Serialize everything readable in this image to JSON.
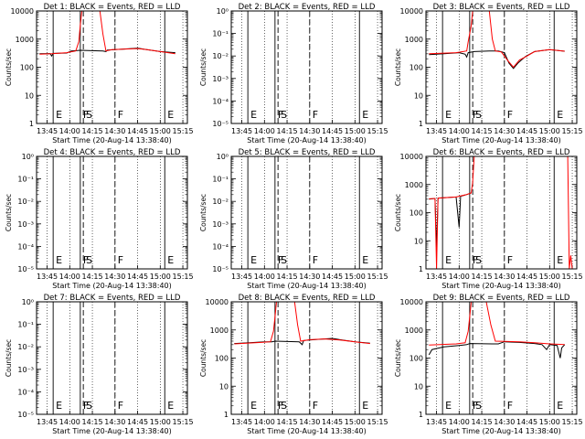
{
  "figure": {
    "xlabel": "Start Time (20-Aug-14 13:38:40)",
    "ylabel": "Counts/sec",
    "x_ticks": [
      "13:45",
      "14:00",
      "14:15",
      "14:30",
      "14:45",
      "15:00",
      "15:15"
    ],
    "log_tick_labels_numeric": [
      "1",
      "10",
      "100",
      "1000",
      "10000"
    ],
    "log_tick_labels_exp": [
      "10⁰",
      "10⁻¹",
      "10⁻²",
      "10⁻³",
      "10⁻⁴",
      "10⁻⁵"
    ],
    "colors": {
      "events": "#000000",
      "lld": "#ff0000"
    }
  },
  "chart_data": [
    {
      "title": "Det 1: BLACK = Events, RED = LLD",
      "type": "line",
      "yscale": "log",
      "xlim": [
        "13:38",
        "15:18"
      ],
      "ylim": [
        1,
        10000
      ],
      "tick_style": "numeric",
      "markers": [
        {
          "x": "13:49",
          "label": "E"
        },
        {
          "x": "14:07",
          "label": "F"
        },
        {
          "x": "14:09",
          "label": "S"
        },
        {
          "x": "14:30",
          "label": "F"
        },
        {
          "x": "15:03",
          "label": "E"
        }
      ],
      "series": [
        {
          "name": "Events",
          "color": "#000000",
          "points": [
            [
              "13:40",
              300
            ],
            [
              "13:47",
              305
            ],
            [
              "13:48",
              250
            ],
            [
              "13:49",
              310
            ],
            [
              "13:58",
              320
            ],
            [
              "14:01",
              380
            ],
            [
              "14:05",
              390
            ],
            [
              "14:07",
              400
            ],
            [
              "14:22",
              380
            ],
            [
              "14:24",
              360
            ],
            [
              "14:25",
              410
            ],
            [
              "14:35",
              440
            ],
            [
              "14:45",
              480
            ],
            [
              "14:50",
              430
            ],
            [
              "15:00",
              360
            ],
            [
              "15:10",
              330
            ]
          ]
        },
        {
          "name": "LLD",
          "color": "#ff0000",
          "points": [
            [
              "13:40",
              290
            ],
            [
              "13:48",
              300
            ],
            [
              "13:58",
              330
            ],
            [
              "14:04",
              380
            ],
            [
              "14:06",
              800
            ],
            [
              "14:07",
              3000
            ],
            [
              "14:08",
              10000
            ],
            [
              "14:20",
              10000
            ],
            [
              "14:22",
              1500
            ],
            [
              "14:24",
              380
            ],
            [
              "14:28",
              420
            ],
            [
              "14:35",
              440
            ],
            [
              "14:45",
              460
            ],
            [
              "14:50",
              430
            ],
            [
              "15:00",
              360
            ],
            [
              "15:10",
              300
            ]
          ]
        }
      ]
    },
    {
      "title": "Det 2: BLACK = Events, RED = LLD",
      "type": "line",
      "yscale": "log",
      "xlim": [
        "13:38",
        "15:18"
      ],
      "ylim": [
        1e-05,
        1
      ],
      "tick_style": "exp",
      "markers": [
        {
          "x": "13:49",
          "label": "E"
        },
        {
          "x": "14:07",
          "label": "F"
        },
        {
          "x": "14:09",
          "label": "S"
        },
        {
          "x": "14:30",
          "label": "F"
        },
        {
          "x": "15:03",
          "label": "E"
        }
      ],
      "series": []
    },
    {
      "title": "Det 3: BLACK = Events, RED = LLD",
      "type": "line",
      "yscale": "log",
      "xlim": [
        "13:38",
        "15:18"
      ],
      "ylim": [
        1,
        10000
      ],
      "tick_style": "numeric",
      "markers": [
        {
          "x": "13:49",
          "label": "E"
        },
        {
          "x": "14:07",
          "label": "F"
        },
        {
          "x": "14:09",
          "label": "S"
        },
        {
          "x": "14:30",
          "label": "F"
        },
        {
          "x": "15:03",
          "label": "E"
        }
      ],
      "series": [
        {
          "name": "Events",
          "color": "#000000",
          "points": [
            [
              "13:40",
              280
            ],
            [
              "13:50",
              300
            ],
            [
              "14:00",
              330
            ],
            [
              "14:04",
              290
            ],
            [
              "14:05",
              230
            ],
            [
              "14:06",
              330
            ],
            [
              "14:10",
              360
            ],
            [
              "14:20",
              380
            ],
            [
              "14:26",
              380
            ],
            [
              "14:30",
              330
            ],
            [
              "14:33",
              140
            ],
            [
              "14:36",
              90
            ],
            [
              "14:39",
              140
            ],
            [
              "14:44",
              240
            ],
            [
              "14:50",
              360
            ],
            [
              "15:00",
              420
            ],
            [
              "15:10",
              370
            ]
          ]
        },
        {
          "name": "LLD",
          "color": "#ff0000",
          "points": [
            [
              "13:40",
              300
            ],
            [
              "13:58",
              330
            ],
            [
              "14:05",
              380
            ],
            [
              "14:06",
              800
            ],
            [
              "14:08",
              3000
            ],
            [
              "14:09",
              10000
            ],
            [
              "14:20",
              10000
            ],
            [
              "14:22",
              1000
            ],
            [
              "14:24",
              380
            ],
            [
              "14:28",
              350
            ],
            [
              "14:32",
              180
            ],
            [
              "14:36",
              100
            ],
            [
              "14:40",
              180
            ],
            [
              "14:45",
              250
            ],
            [
              "14:50",
              360
            ],
            [
              "15:00",
              420
            ],
            [
              "15:10",
              370
            ]
          ]
        }
      ]
    },
    {
      "title": "Det 4: BLACK = Events, RED = LLD",
      "type": "line",
      "yscale": "log",
      "xlim": [
        "13:38",
        "15:18"
      ],
      "ylim": [
        1e-05,
        1
      ],
      "tick_style": "exp",
      "markers": [
        {
          "x": "13:49",
          "label": "E"
        },
        {
          "x": "14:07",
          "label": "F"
        },
        {
          "x": "14:09",
          "label": "S"
        },
        {
          "x": "14:30",
          "label": "F"
        },
        {
          "x": "15:03",
          "label": "E"
        }
      ],
      "series": []
    },
    {
      "title": "Det 5: BLACK = Events, RED = LLD",
      "type": "line",
      "yscale": "log",
      "xlim": [
        "13:38",
        "15:18"
      ],
      "ylim": [
        1e-05,
        1
      ],
      "tick_style": "exp",
      "markers": [
        {
          "x": "13:49",
          "label": "E"
        },
        {
          "x": "14:07",
          "label": "F"
        },
        {
          "x": "14:09",
          "label": "S"
        },
        {
          "x": "14:30",
          "label": "F"
        },
        {
          "x": "15:03",
          "label": "E"
        }
      ],
      "series": []
    },
    {
      "title": "Det 6: BLACK = Events, RED = LLD",
      "type": "line",
      "yscale": "log",
      "xlim": [
        "13:38",
        "15:18"
      ],
      "ylim": [
        1,
        10000
      ],
      "tick_style": "numeric",
      "markers": [
        {
          "x": "13:49",
          "label": "E"
        },
        {
          "x": "14:07",
          "label": "F"
        },
        {
          "x": "14:09",
          "label": "S"
        },
        {
          "x": "14:30",
          "label": "F"
        },
        {
          "x": "15:03",
          "label": "E"
        }
      ],
      "series": [
        {
          "name": "Events",
          "color": "#000000",
          "points": [
            [
              "13:40",
              300
            ],
            [
              "13:44",
              320
            ],
            [
              "13:45",
              5
            ],
            [
              "13:46",
              330
            ],
            [
              "13:58",
              360
            ],
            [
              "14:00",
              30
            ],
            [
              "14:01",
              380
            ],
            [
              "14:05",
              440
            ],
            [
              "14:08",
              500
            ]
          ]
        },
        {
          "name": "LLD",
          "color": "#ff0000",
          "points": [
            [
              "13:40",
              310
            ],
            [
              "13:44",
              320
            ],
            [
              "13:45",
              1
            ],
            [
              "13:46",
              330
            ],
            [
              "13:58",
              360
            ],
            [
              "14:05",
              440
            ],
            [
              "14:08",
              500
            ],
            [
              "14:09",
              1200
            ],
            [
              "14:10",
              10000
            ],
            [
              "15:12",
              10000
            ],
            [
              "15:13",
              1
            ],
            [
              "15:14",
              3
            ],
            [
              "15:15",
              1
            ]
          ]
        }
      ]
    },
    {
      "title": "Det 7: BLACK = Events, RED = LLD",
      "type": "line",
      "yscale": "log",
      "xlim": [
        "13:38",
        "15:18"
      ],
      "ylim": [
        1e-05,
        1
      ],
      "tick_style": "exp",
      "markers": [
        {
          "x": "13:49",
          "label": "E"
        },
        {
          "x": "14:07",
          "label": "F"
        },
        {
          "x": "14:09",
          "label": "S"
        },
        {
          "x": "14:30",
          "label": "F"
        },
        {
          "x": "15:03",
          "label": "E"
        }
      ],
      "series": []
    },
    {
      "title": "Det 8: BLACK = Events, RED = LLD",
      "type": "line",
      "yscale": "log",
      "xlim": [
        "13:38",
        "15:18"
      ],
      "ylim": [
        1,
        10000
      ],
      "tick_style": "numeric",
      "markers": [
        {
          "x": "13:49",
          "label": "E"
        },
        {
          "x": "14:07",
          "label": "F"
        },
        {
          "x": "14:09",
          "label": "S"
        },
        {
          "x": "14:30",
          "label": "F"
        },
        {
          "x": "15:03",
          "label": "E"
        }
      ],
      "series": [
        {
          "name": "Events",
          "color": "#000000",
          "points": [
            [
              "13:40",
              330
            ],
            [
              "13:50",
              350
            ],
            [
              "14:00",
              380
            ],
            [
              "14:05",
              380
            ],
            [
              "14:07",
              400
            ],
            [
              "14:23",
              380
            ],
            [
              "14:25",
              300
            ],
            [
              "14:26",
              420
            ],
            [
              "14:35",
              460
            ],
            [
              "14:45",
              500
            ],
            [
              "14:50",
              450
            ],
            [
              "15:00",
              380
            ],
            [
              "15:10",
              340
            ]
          ]
        },
        {
          "name": "LLD",
          "color": "#ff0000",
          "points": [
            [
              "13:40",
              320
            ],
            [
              "13:58",
              360
            ],
            [
              "14:04",
              380
            ],
            [
              "14:06",
              900
            ],
            [
              "14:07",
              3000
            ],
            [
              "14:08",
              10000
            ],
            [
              "14:20",
              10000
            ],
            [
              "14:22",
              1500
            ],
            [
              "14:24",
              400
            ],
            [
              "14:30",
              450
            ],
            [
              "14:40",
              480
            ],
            [
              "14:50",
              440
            ],
            [
              "15:00",
              380
            ],
            [
              "15:10",
              330
            ]
          ]
        }
      ]
    },
    {
      "title": "Det 9: BLACK = Events, RED = LLD",
      "type": "line",
      "yscale": "log",
      "xlim": [
        "13:38",
        "15:18"
      ],
      "ylim": [
        1,
        10000
      ],
      "tick_style": "numeric",
      "markers": [
        {
          "x": "13:49",
          "label": "E"
        },
        {
          "x": "14:07",
          "label": "F"
        },
        {
          "x": "14:09",
          "label": "S"
        },
        {
          "x": "14:30",
          "label": "F"
        },
        {
          "x": "15:03",
          "label": "E"
        }
      ],
      "series": [
        {
          "name": "Events",
          "color": "#000000",
          "points": [
            [
              "13:40",
              130
            ],
            [
              "13:42",
              200
            ],
            [
              "13:50",
              250
            ],
            [
              "14:00",
              280
            ],
            [
              "14:05",
              300
            ],
            [
              "14:07",
              330
            ],
            [
              "14:22",
              320
            ],
            [
              "14:26",
              320
            ],
            [
              "14:30",
              380
            ],
            [
              "14:40",
              360
            ],
            [
              "14:50",
              330
            ],
            [
              "14:55",
              300
            ],
            [
              "14:58",
              200
            ],
            [
              "15:00",
              300
            ],
            [
              "15:05",
              280
            ],
            [
              "15:07",
              100
            ],
            [
              "15:08",
              230
            ],
            [
              "15:10",
              300
            ]
          ]
        },
        {
          "name": "LLD",
          "color": "#ff0000",
          "points": [
            [
              "13:40",
              290
            ],
            [
              "13:58",
              320
            ],
            [
              "14:04",
              350
            ],
            [
              "14:06",
              900
            ],
            [
              "14:07",
              3000
            ],
            [
              "14:08",
              10000
            ],
            [
              "14:18",
              10000
            ],
            [
              "14:21",
              1500
            ],
            [
              "14:24",
              400
            ],
            [
              "14:30",
              390
            ],
            [
              "14:40",
              380
            ],
            [
              "14:50",
              350
            ],
            [
              "15:00",
              320
            ],
            [
              "15:10",
              300
            ]
          ]
        }
      ]
    }
  ]
}
